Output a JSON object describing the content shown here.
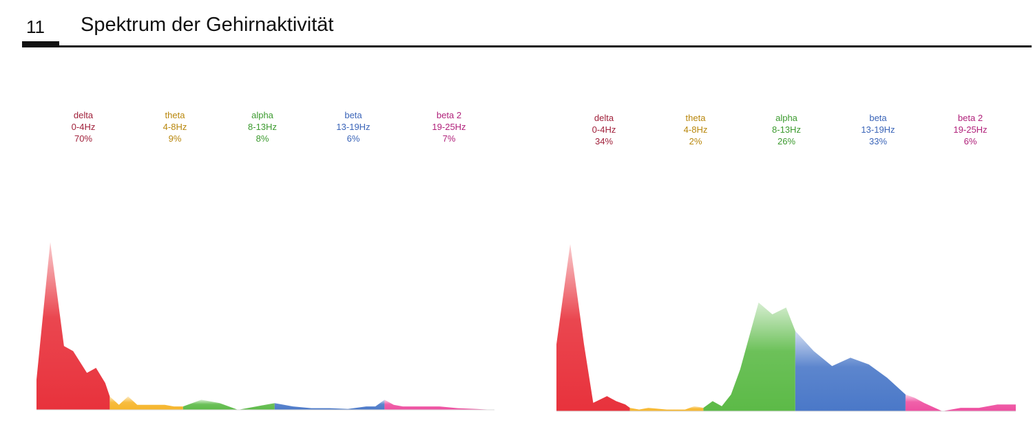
{
  "page": {
    "number": "11",
    "title": "Spektrum der Gehirnaktivität"
  },
  "colors": {
    "delta": "#e8323c",
    "theta": "#f6b52a",
    "alpha": "#5cba47",
    "beta": "#4a78c8",
    "beta2": "#ee4fa0",
    "label_delta": "#a0203a",
    "label_theta": "#b8860b",
    "label_alpha": "#3b9a2e",
    "label_beta": "#3a64b8",
    "label_beta2": "#b0207a"
  },
  "chart_data": [
    {
      "type": "area",
      "xlim": [
        0,
        25
      ],
      "ylim": [
        0,
        100
      ],
      "bands": [
        {
          "key": "delta",
          "name": "delta",
          "range": "0-4Hz",
          "percent": "70%",
          "from": 0,
          "to": 4
        },
        {
          "key": "theta",
          "name": "theta",
          "range": "4-8Hz",
          "percent": "9%",
          "from": 4,
          "to": 8
        },
        {
          "key": "alpha",
          "name": "alpha",
          "range": "8-13Hz",
          "percent": "8%",
          "from": 8,
          "to": 13
        },
        {
          "key": "beta",
          "name": "beta",
          "range": "13-19Hz",
          "percent": "6%",
          "from": 13,
          "to": 19
        },
        {
          "key": "beta2",
          "name": "beta 2",
          "range": "19-25Hz",
          "percent": "7%",
          "from": 19,
          "to": 25
        }
      ],
      "x": [
        0,
        0.75,
        1.5,
        2,
        2.75,
        3.25,
        3.75,
        4,
        4.5,
        5,
        5.5,
        6,
        6.5,
        7,
        7.5,
        8,
        9,
        10,
        11,
        12,
        13,
        14,
        15,
        16,
        17,
        18,
        18.5,
        19,
        19.5,
        20,
        20.5,
        21,
        22,
        23,
        24,
        25
      ],
      "y": [
        18,
        100,
        38,
        35,
        22,
        25,
        16,
        8,
        3,
        8,
        3,
        3,
        3,
        3,
        2,
        2,
        6,
        4,
        0,
        2,
        4,
        2,
        1,
        1,
        0.5,
        2,
        2,
        6,
        3,
        2,
        2,
        2,
        2,
        1,
        0.5,
        0
      ]
    },
    {
      "type": "area",
      "xlim": [
        0,
        25
      ],
      "ylim": [
        0,
        100
      ],
      "bands": [
        {
          "key": "delta",
          "name": "delta",
          "range": "0-4Hz",
          "percent": "34%",
          "from": 0,
          "to": 4
        },
        {
          "key": "theta",
          "name": "theta",
          "range": "4-8Hz",
          "percent": "2%",
          "from": 4,
          "to": 8
        },
        {
          "key": "alpha",
          "name": "alpha",
          "range": "8-13Hz",
          "percent": "26%",
          "from": 8,
          "to": 13
        },
        {
          "key": "beta",
          "name": "beta",
          "range": "13-19Hz",
          "percent": "33%",
          "from": 13,
          "to": 19
        },
        {
          "key": "beta2",
          "name": "beta 2",
          "range": "19-25Hz",
          "percent": "6%",
          "from": 19,
          "to": 25
        }
      ],
      "x": [
        0,
        0.75,
        1.5,
        2,
        2.75,
        3.25,
        3.75,
        4,
        4.5,
        5,
        6,
        7,
        7.5,
        8,
        8.5,
        9,
        9.5,
        10,
        11,
        11.75,
        12.5,
        13,
        14,
        15,
        16,
        17,
        18,
        19,
        19.5,
        20,
        21,
        22,
        23,
        24,
        25
      ],
      "y": [
        40,
        100,
        40,
        5,
        9,
        6,
        4,
        2,
        1,
        2,
        1,
        1,
        3,
        2,
        6,
        3,
        10,
        25,
        65,
        58,
        62,
        48,
        36,
        27,
        32,
        28,
        20,
        10,
        8,
        5,
        0,
        2,
        2,
        4,
        4
      ]
    }
  ]
}
